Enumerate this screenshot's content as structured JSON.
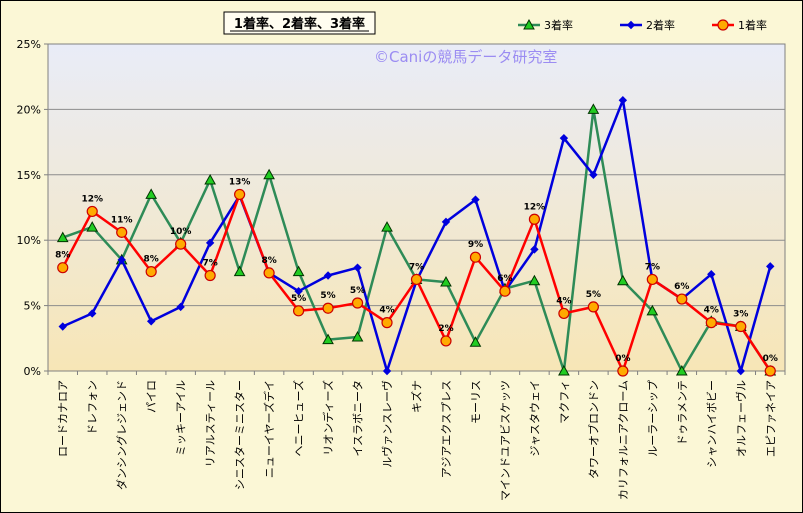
{
  "chart_data": {
    "type": "line",
    "title": "1着率、2着率、3着率",
    "watermark": "©Caniの競馬データ研究室",
    "categories": [
      "ロードカナロア",
      "ドレフォン",
      "ダンシングレジェンド",
      "パイロ",
      "ミッキーアイル",
      "リアルスティール",
      "シニスターミニスター",
      "ニューイヤーズデイ",
      "ヘニーヒューズ",
      "リオンディーズ",
      "イスラボニータ",
      "ルヴァンスレーヴ",
      "キズナ",
      "アジアエクスプレス",
      "モーリス",
      "マインドユアビスケッツ",
      "ジャスタウェイ",
      "マクフィ",
      "タワーオブロンドン",
      "カリフォルニアクローム",
      "ルーラーシップ",
      "ドゥラメンテ",
      "シャンハイボビー",
      "オルフェーヴル",
      "エピファネイア"
    ],
    "ylim": [
      0,
      25
    ],
    "yticks": [
      "0%",
      "5%",
      "10%",
      "15%",
      "20%",
      "25%"
    ],
    "grid": true,
    "legend_position": "top-right",
    "series": [
      {
        "name": "3着率",
        "color": "#2e8b57",
        "marker": "triangle",
        "marker_color": "#22cc22",
        "values": [
          10.2,
          11.0,
          8.5,
          13.5,
          9.8,
          14.6,
          7.6,
          15.0,
          7.6,
          2.4,
          2.6,
          11.0,
          7.0,
          6.8,
          2.2,
          6.3,
          6.9,
          0.0,
          20.0,
          6.9,
          4.6,
          0.0,
          3.8,
          3.4,
          0.0
        ]
      },
      {
        "name": "2着率",
        "color": "#0000dd",
        "marker": "diamond",
        "marker_color": "#0000dd",
        "values": [
          3.4,
          4.4,
          8.5,
          3.8,
          4.9,
          9.8,
          13.4,
          7.5,
          6.1,
          7.3,
          7.9,
          0.0,
          6.9,
          11.4,
          13.1,
          6.1,
          9.3,
          17.8,
          15.0,
          20.7,
          7.0,
          5.5,
          7.4,
          0.0,
          8.0
        ]
      },
      {
        "name": "1着率",
        "color": "#ff0000",
        "marker": "circle",
        "marker_color": "#ffaa00",
        "values": [
          7.9,
          12.2,
          10.6,
          7.6,
          9.7,
          7.3,
          13.5,
          7.5,
          4.6,
          4.8,
          5.2,
          3.7,
          7.0,
          2.3,
          8.7,
          6.1,
          11.6,
          4.4,
          4.9,
          0.0,
          7.0,
          5.5,
          3.7,
          3.4,
          0.0
        ]
      }
    ],
    "data_labels": [
      "8%",
      "12%",
      "11%",
      "8%",
      "10%",
      "7%",
      "13%",
      "8%",
      "5%",
      "5%",
      "5%",
      "4%",
      "7%",
      "2%",
      "9%",
      "6%",
      "12%",
      "4%",
      "5%",
      "0%",
      "7%",
      "6%",
      "4%",
      "3%",
      "0%"
    ]
  }
}
